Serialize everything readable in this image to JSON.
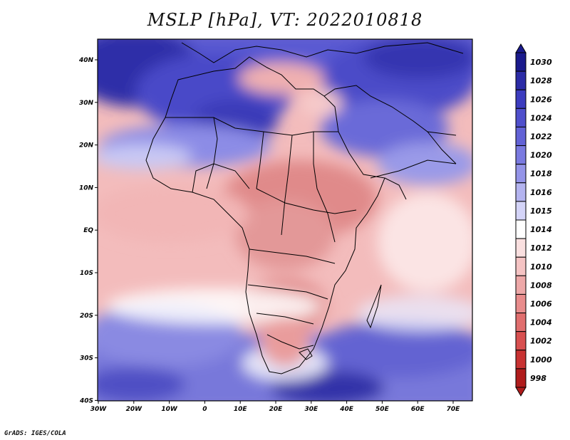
{
  "title": "MSLP [hPa], VT: 2022010818",
  "footer": "GrADS: IGES/COLA",
  "axes": {
    "lon_labels": [
      "30W",
      "20W",
      "10W",
      "0",
      "10E",
      "20E",
      "30E",
      "40E",
      "50E",
      "60E",
      "70E"
    ],
    "lat_labels": [
      "40N",
      "30N",
      "20N",
      "10N",
      "EQ",
      "10S",
      "20S",
      "30S",
      "40S"
    ]
  },
  "colorbar": {
    "labels": [
      "1030",
      "1028",
      "1026",
      "1024",
      "1022",
      "1020",
      "1018",
      "1016",
      "1015",
      "1014",
      "1012",
      "1010",
      "1008",
      "1006",
      "1004",
      "1002",
      "1000",
      "998"
    ],
    "colors": [
      "#1a1a8c",
      "#2b2ba6",
      "#3c3cbf",
      "#4f4fcc",
      "#6262d6",
      "#7a7ae0",
      "#9494e8",
      "#b4b4f0",
      "#d4d4f8",
      "#ffffff",
      "#fae0e0",
      "#f5c4c4",
      "#eda8a8",
      "#e88c8c",
      "#e06e6e",
      "#d85050",
      "#c83232",
      "#b01c1c"
    ]
  },
  "colors": {
    "land_border": "#000000",
    "frame": "#000000"
  }
}
